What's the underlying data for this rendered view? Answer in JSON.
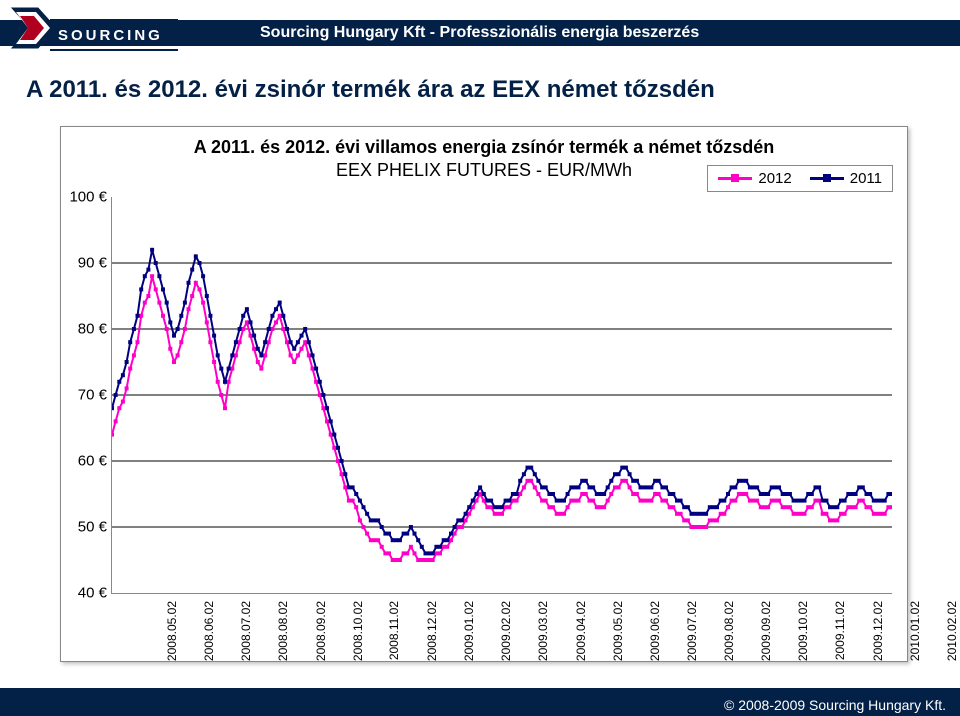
{
  "header": {
    "brand_title": "Sourcing Hungary Kft - Professzionális energia beszerzés",
    "logo_text": "SOURCING"
  },
  "main_title": "A 2011. és 2012. évi zsinór termék ára az EEX német tőzsdén",
  "footer": {
    "copyright": "© 2008-2009 Sourcing Hungary Kft."
  },
  "chart": {
    "type": "line",
    "title_l1": "A 2011. és 2012. évi villamos energia zsínór termék a német tőzsdén",
    "title_l2": "EEX PHELIX FUTURES  - EUR/MWh",
    "title_fontsize": 18,
    "background_color": "#ffffff",
    "grid_color": "#000000",
    "y": {
      "min": 40,
      "max": 100,
      "step": 10,
      "unit": "€"
    },
    "x_labels": [
      "2008.05.02",
      "2008.06.02",
      "2008.07.02",
      "2008.08.02",
      "2008.09.02",
      "2008.10.02",
      "2008.11.02",
      "2008.12.02",
      "2009.01.02",
      "2009.02.02",
      "2009.03.02",
      "2009.04.02",
      "2009.05.02",
      "2009.06.02",
      "2009.07.02",
      "2009.08.02",
      "2009.09.02",
      "2009.10.02",
      "2009.11.02",
      "2009.12.02",
      "2010.01.02",
      "2010.02.02"
    ],
    "legend": [
      {
        "label": "2012",
        "color": "#ff00c8",
        "marker_color": "#ff00c8"
      },
      {
        "label": "2011",
        "color": "#000080",
        "marker_color": "#000080"
      }
    ],
    "series": {
      "s2011": {
        "label": "2011",
        "color": "#000080",
        "marker_color": "#000080",
        "line_width": 2,
        "marker_size": 4,
        "values": [
          68,
          70,
          72,
          73,
          75,
          78,
          80,
          82,
          86,
          88,
          89,
          92,
          90,
          88,
          86,
          84,
          81,
          79,
          80,
          82,
          84,
          87,
          89,
          91,
          90,
          88,
          85,
          82,
          79,
          76,
          74,
          72,
          74,
          76,
          78,
          80,
          82,
          83,
          81,
          79,
          77,
          76,
          78,
          80,
          82,
          83,
          84,
          82,
          80,
          78,
          77,
          78,
          79,
          80,
          78,
          76,
          74,
          72,
          70,
          68,
          66,
          64,
          62,
          60,
          58,
          56,
          56,
          55,
          54,
          53,
          52,
          51,
          51,
          51,
          50,
          49,
          49,
          48,
          48,
          48,
          49,
          49,
          50,
          49,
          48,
          47,
          46,
          46,
          46,
          47,
          47,
          48,
          48,
          49,
          50,
          51,
          51,
          52,
          53,
          54,
          55,
          56,
          55,
          54,
          54,
          53,
          53,
          53,
          54,
          54,
          55,
          55,
          57,
          58,
          59,
          59,
          58,
          57,
          56,
          56,
          55,
          55,
          54,
          54,
          54,
          55,
          56,
          56,
          56,
          57,
          57,
          56,
          56,
          55,
          55,
          55,
          56,
          57,
          58,
          58,
          59,
          59,
          58,
          57,
          57,
          56,
          56,
          56,
          56,
          57,
          57,
          56,
          56,
          55,
          55,
          54,
          54,
          53,
          53,
          52,
          52,
          52,
          52,
          52,
          53,
          53,
          53,
          54,
          54,
          55,
          56,
          56,
          57,
          57,
          57,
          56,
          56,
          56,
          55,
          55,
          55,
          56,
          56,
          56,
          55,
          55,
          55,
          54,
          54,
          54,
          54,
          55,
          55,
          56,
          56,
          54,
          54,
          53,
          53,
          53,
          54,
          54,
          55,
          55,
          55,
          56,
          56,
          55,
          55,
          54,
          54,
          54,
          54,
          55,
          55
        ]
      },
      "s2012": {
        "label": "2012",
        "color": "#ff00c8",
        "marker_color": "#ff00c8",
        "line_width": 2,
        "marker_size": 4,
        "values": [
          64,
          66,
          68,
          69,
          71,
          74,
          76,
          78,
          82,
          84,
          85,
          88,
          86,
          84,
          82,
          80,
          77,
          75,
          76,
          78,
          80,
          83,
          85,
          87,
          86,
          84,
          81,
          78,
          75,
          72,
          70,
          68,
          72,
          74,
          76,
          78,
          80,
          81,
          79,
          77,
          75,
          74,
          76,
          78,
          80,
          81,
          82,
          80,
          78,
          76,
          75,
          76,
          77,
          78,
          76,
          74,
          72,
          70,
          68,
          66,
          64,
          62,
          60,
          58,
          56,
          54,
          54,
          53,
          51,
          50,
          49,
          48,
          48,
          48,
          47,
          46,
          46,
          45,
          45,
          45,
          46,
          46,
          47,
          46,
          45,
          45,
          45,
          45,
          45,
          46,
          46,
          47,
          47,
          48,
          49,
          50,
          50,
          51,
          52,
          53,
          54,
          55,
          54,
          53,
          53,
          52,
          52,
          52,
          53,
          53,
          54,
          54,
          55,
          56,
          57,
          57,
          56,
          55,
          54,
          54,
          53,
          53,
          52,
          52,
          52,
          53,
          54,
          54,
          54,
          55,
          55,
          54,
          54,
          53,
          53,
          53,
          54,
          55,
          56,
          56,
          57,
          57,
          56,
          55,
          55,
          54,
          54,
          54,
          54,
          55,
          55,
          54,
          54,
          53,
          53,
          52,
          52,
          51,
          51,
          50,
          50,
          50,
          50,
          50,
          51,
          51,
          51,
          52,
          52,
          53,
          54,
          54,
          55,
          55,
          55,
          54,
          54,
          54,
          53,
          53,
          53,
          54,
          54,
          54,
          53,
          53,
          53,
          52,
          52,
          52,
          52,
          53,
          53,
          54,
          54,
          52,
          52,
          51,
          51,
          51,
          52,
          52,
          53,
          53,
          53,
          54,
          54,
          53,
          53,
          52,
          52,
          52,
          52,
          53,
          53
        ]
      }
    }
  }
}
